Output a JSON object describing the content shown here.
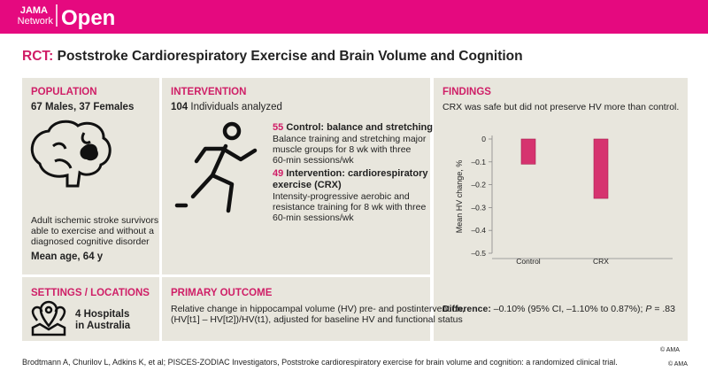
{
  "header": {
    "brand_top": "JAMA",
    "brand_bottom": "Network",
    "brand_open": "Open"
  },
  "title": {
    "prefix": "RCT:",
    "text": "Poststroke Cardiorespiratory Exercise and Brain Volume and Cognition"
  },
  "population": {
    "heading": "POPULATION",
    "counts": "67 Males, 37 Females",
    "description": [
      "Adult ischemic stroke survivors",
      "able to exercise and without a",
      "diagnosed cognitive disorder"
    ],
    "age": "Mean age, 64 y"
  },
  "intervention": {
    "heading": "INTERVENTION",
    "total_number": "104",
    "total_text": "Individuals analyzed",
    "groups": [
      {
        "number": "55",
        "name": [
          "Control: balance and stretching"
        ],
        "description": [
          "Balance training and stretching major",
          "muscle groups for 8 wk with three",
          "60-min sessions/wk"
        ]
      },
      {
        "number": "49",
        "name": [
          "Intervention: cardiorespiratory",
          "exercise (CRX)"
        ],
        "description": [
          "Intensity-progressive aerobic and",
          "resistance training for 8 wk with three",
          "60-min sessions/wk"
        ]
      }
    ]
  },
  "findings": {
    "heading": "FINDINGS",
    "summary": "CRX was safe but did not preserve HV more than control.",
    "difference_label": "Difference:",
    "difference_text": " –0.10% (95% CI, –1.10% to 0.87%); ",
    "p_symbol": "P",
    "p_text": " = .83"
  },
  "chart_data": {
    "type": "bar",
    "y_label": "Mean HV change, %",
    "categories": [
      "Control",
      "CRX"
    ],
    "values": [
      -0.11,
      -0.26
    ],
    "color": "#d6336f",
    "ylim": [
      -0.5,
      0
    ],
    "yticks": [
      0,
      {
        "value": -0.1,
        "label": "–0.1"
      },
      {
        "value": -0.2,
        "label": "–0.2"
      },
      {
        "value": -0.3,
        "label": "–0.3"
      },
      {
        "value": -0.4,
        "label": "–0.4"
      },
      {
        "value": -0.5,
        "label": "–0.5"
      }
    ]
  },
  "settings": {
    "heading": "SETTINGS / LOCATIONS",
    "lines": [
      "4 Hospitals",
      "in Australia"
    ]
  },
  "primary_outcome": {
    "heading": "PRIMARY OUTCOME",
    "lines": [
      "Relative change in hippocampal volume (HV) pre- and postintervention,",
      "(HV[t1] – HV[t2])/HV(t1), adjusted for baseline HV and functional status"
    ]
  },
  "footer": {
    "citation": "Brodtmann A, Churilov L, Adkins K, et al; PISCES-ZODIAC Investigators, Poststroke cardiorespiratory exercise for brain volume and cognition: a randomized clinical trial.",
    "copyright": "© AMA"
  }
}
